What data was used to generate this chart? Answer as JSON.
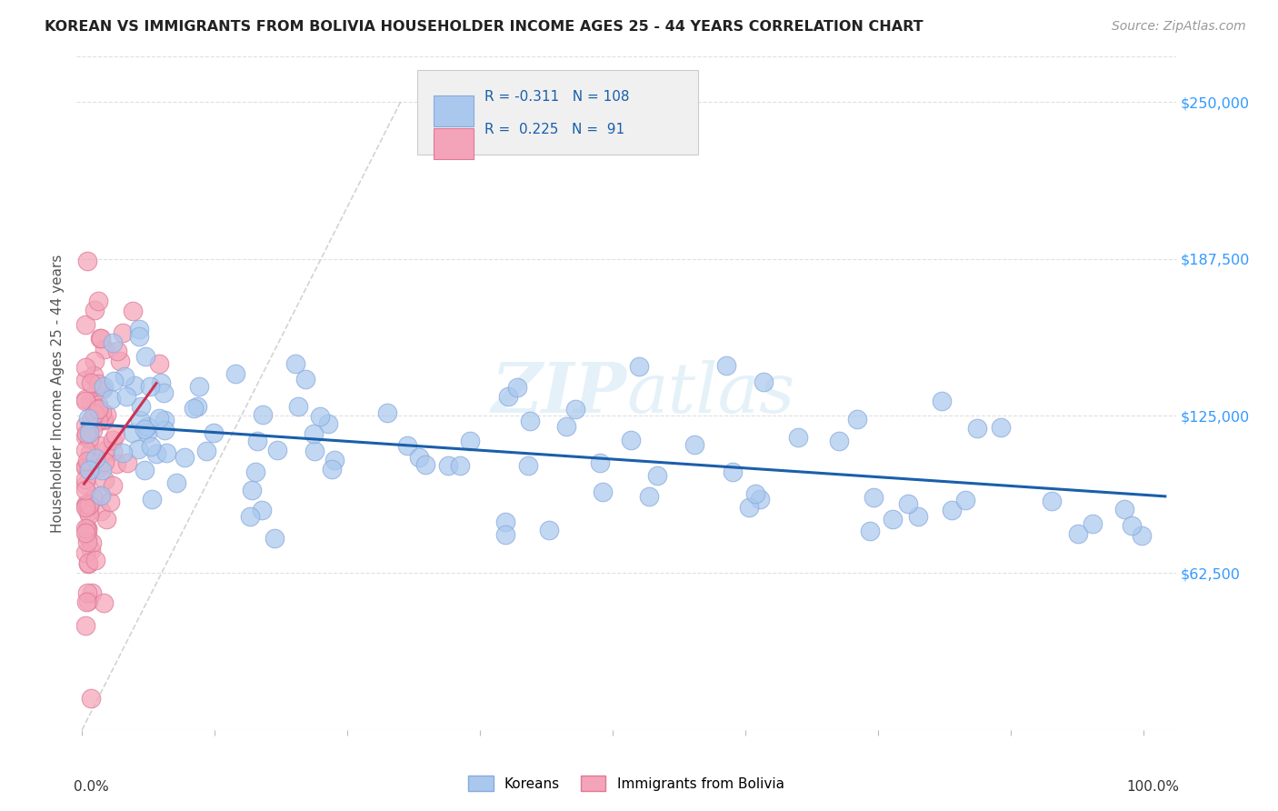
{
  "title": "KOREAN VS IMMIGRANTS FROM BOLIVIA HOUSEHOLDER INCOME AGES 25 - 44 YEARS CORRELATION CHART",
  "source": "Source: ZipAtlas.com",
  "ylabel": "Householder Income Ages 25 - 44 years",
  "ytick_labels": [
    "$62,500",
    "$125,000",
    "$187,500",
    "$250,000"
  ],
  "ytick_values": [
    62500,
    125000,
    187500,
    250000
  ],
  "ylim": [
    0,
    268000
  ],
  "xlim": [
    -0.005,
    1.03
  ],
  "watermark": "ZIPatlas",
  "legend_r1": "R = -0.311",
  "legend_n1": "N = 108",
  "legend_r2": "R =  0.225",
  "legend_n2": "N =  91",
  "korean_color": "#aac8ee",
  "bolivia_color": "#f4a4b8",
  "korean_edge": "#88aadd",
  "bolivia_edge": "#e07898",
  "trend_korean_color": "#1a5faa",
  "trend_bolivia_color": "#cc3355",
  "diag_color": "#cccccc",
  "background_color": "#ffffff",
  "grid_color": "#e0e0e0",
  "title_color": "#222222",
  "axis_label_color": "#555555",
  "ytick_color": "#3399ff",
  "source_color": "#999999",
  "legend_box_color": "#f0f0f0",
  "legend_border_color": "#cccccc",
  "legend_text_color": "#1a5faa",
  "legend_label_color": "#333333"
}
